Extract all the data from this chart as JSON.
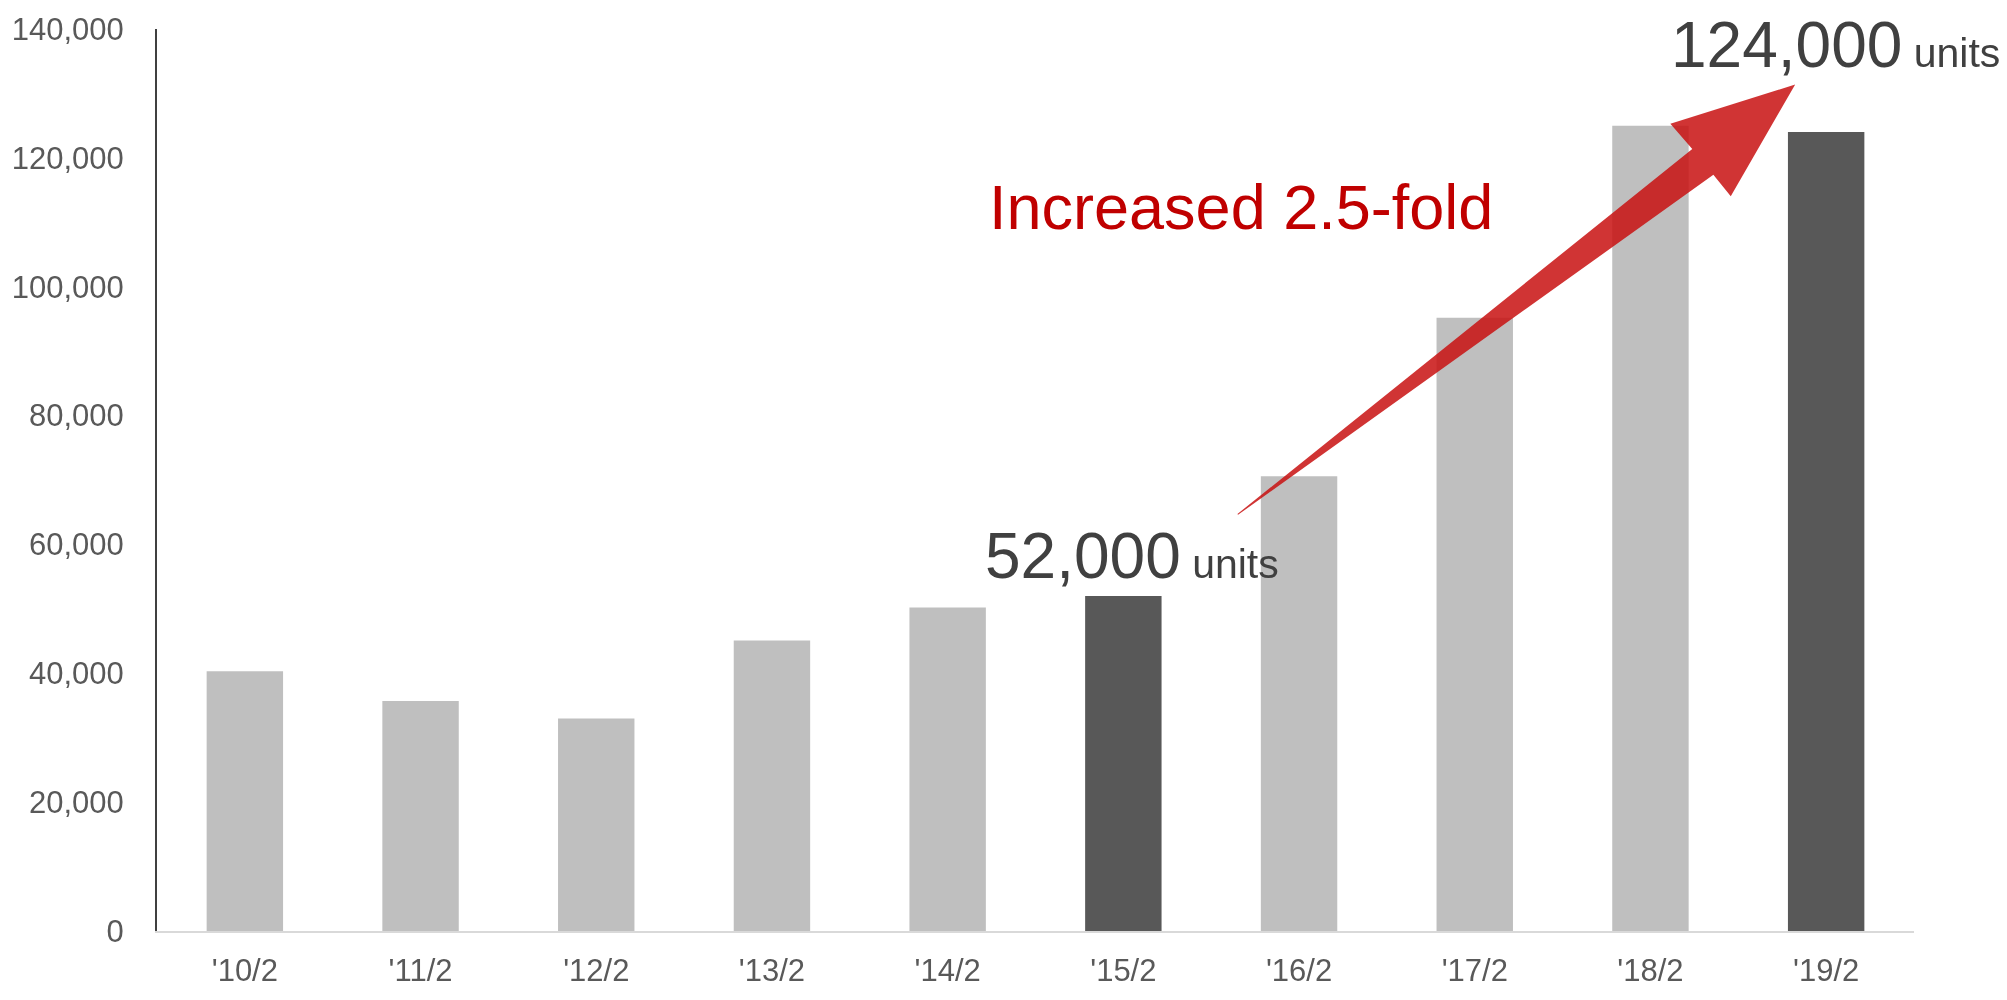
{
  "chart_data": {
    "type": "bar",
    "categories": [
      "'10/2",
      "'11/2",
      "'12/2",
      "'13/2",
      "'14/2",
      "'15/2",
      "'16/2",
      "'17/2",
      "'18/2",
      "'19/2"
    ],
    "values": [
      40300,
      35700,
      33000,
      45100,
      50200,
      52000,
      70600,
      95200,
      125000,
      124000
    ],
    "colors": [
      "#bfbfbf",
      "#bfbfbf",
      "#bfbfbf",
      "#bfbfbf",
      "#bfbfbf",
      "#585858",
      "#bfbfbf",
      "#bfbfbf",
      "#bfbfbf",
      "#585858"
    ],
    "value_labels": [
      null,
      null,
      null,
      null,
      null,
      "52,000 units",
      null,
      null,
      null,
      "124,000 units"
    ],
    "ylim": [
      0,
      140000
    ],
    "yticks": [
      0,
      {
        "value": 20000,
        "label": "20,000"
      },
      {
        "value": 40000,
        "label": "40,000"
      },
      {
        "value": 60000,
        "label": "60,000"
      },
      {
        "value": 80000,
        "label": "80,000"
      },
      {
        "value": 100000,
        "label": "100,000"
      },
      {
        "value": 120000,
        "label": "120,000"
      },
      {
        "value": 140000,
        "label": "140,000"
      }
    ],
    "annotations": [
      "Increased 2.5-fold"
    ]
  }
}
